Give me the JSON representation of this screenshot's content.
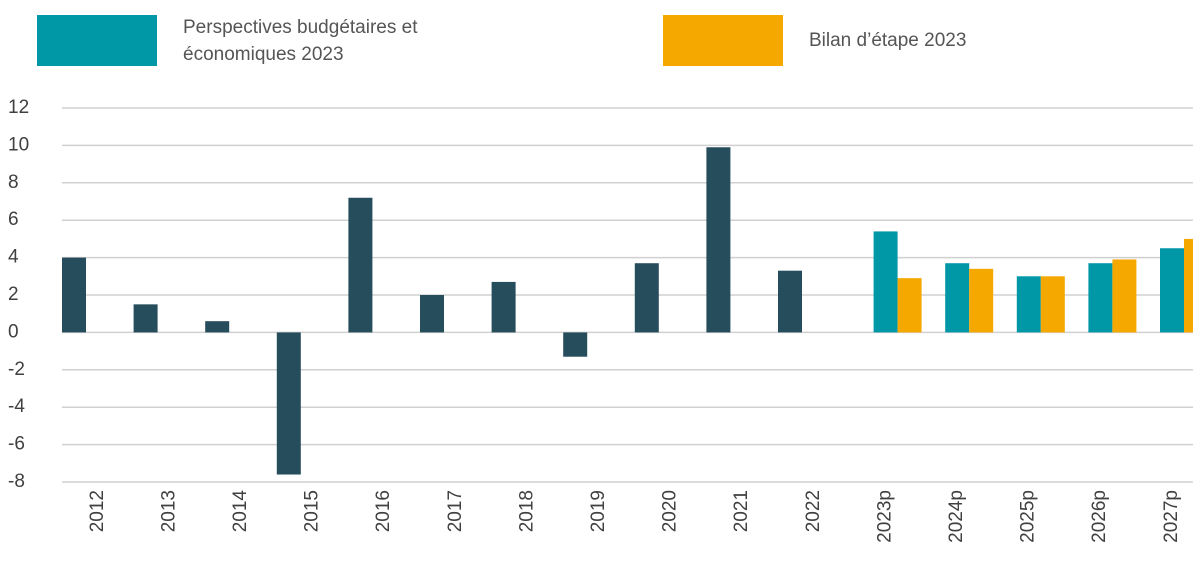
{
  "chart_data": {
    "type": "bar",
    "categories": [
      "2012",
      "2013",
      "2014",
      "2015",
      "2016",
      "2017",
      "2018",
      "2019",
      "2020",
      "2021",
      "2022",
      "2023p",
      "2024p",
      "2025p",
      "2026p",
      "2027p"
    ],
    "series": [
      {
        "color": "#264d5c",
        "values": [
          4.0,
          1.5,
          0.6,
          -7.6,
          7.2,
          2.0,
          2.7,
          -1.3,
          3.7,
          9.9,
          3.3,
          null,
          null,
          null,
          null,
          null
        ]
      },
      {
        "name": "Perspectives budgétaires et économiques 2023",
        "color": "#0097a7",
        "values": [
          null,
          null,
          null,
          null,
          null,
          null,
          null,
          null,
          null,
          null,
          null,
          5.4,
          3.7,
          3.0,
          3.7,
          4.5
        ]
      },
      {
        "name": "Bilan d’étape 2023",
        "color": "#f5a800",
        "values": [
          null,
          null,
          null,
          null,
          null,
          null,
          null,
          null,
          null,
          null,
          null,
          2.9,
          3.4,
          3.0,
          3.9,
          5.0
        ]
      }
    ],
    "ylim": [
      -8,
      12
    ],
    "yticks": [
      -8,
      -6,
      -4,
      -2,
      0,
      2,
      4,
      6,
      8,
      10,
      12
    ],
    "grid": true
  }
}
